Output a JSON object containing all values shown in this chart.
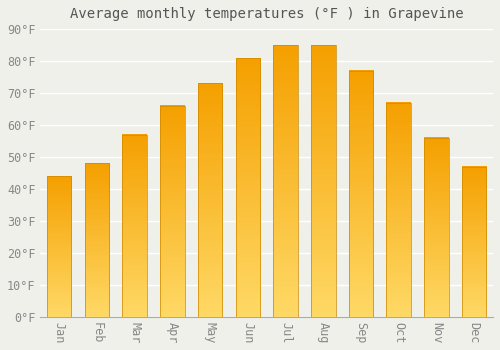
{
  "title": "Average monthly temperatures (°F ) in Grapevine",
  "months": [
    "Jan",
    "Feb",
    "Mar",
    "Apr",
    "May",
    "Jun",
    "Jul",
    "Aug",
    "Sep",
    "Oct",
    "Nov",
    "Dec"
  ],
  "values": [
    44,
    48,
    57,
    66,
    73,
    81,
    85,
    85,
    77,
    67,
    56,
    47
  ],
  "bar_color_dark": "#F5A623",
  "bar_color_light": "#FFD966",
  "ylim": [
    0,
    90
  ],
  "yticks": [
    0,
    10,
    20,
    30,
    40,
    50,
    60,
    70,
    80,
    90
  ],
  "ytick_labels": [
    "0°F",
    "10°F",
    "20°F",
    "30°F",
    "40°F",
    "50°F",
    "60°F",
    "70°F",
    "80°F",
    "90°F"
  ],
  "background_color": "#f0f0ea",
  "grid_color": "#ffffff",
  "title_fontsize": 10,
  "tick_fontsize": 8.5,
  "tick_color": "#888888",
  "bar_edge_color": "#CC8800"
}
